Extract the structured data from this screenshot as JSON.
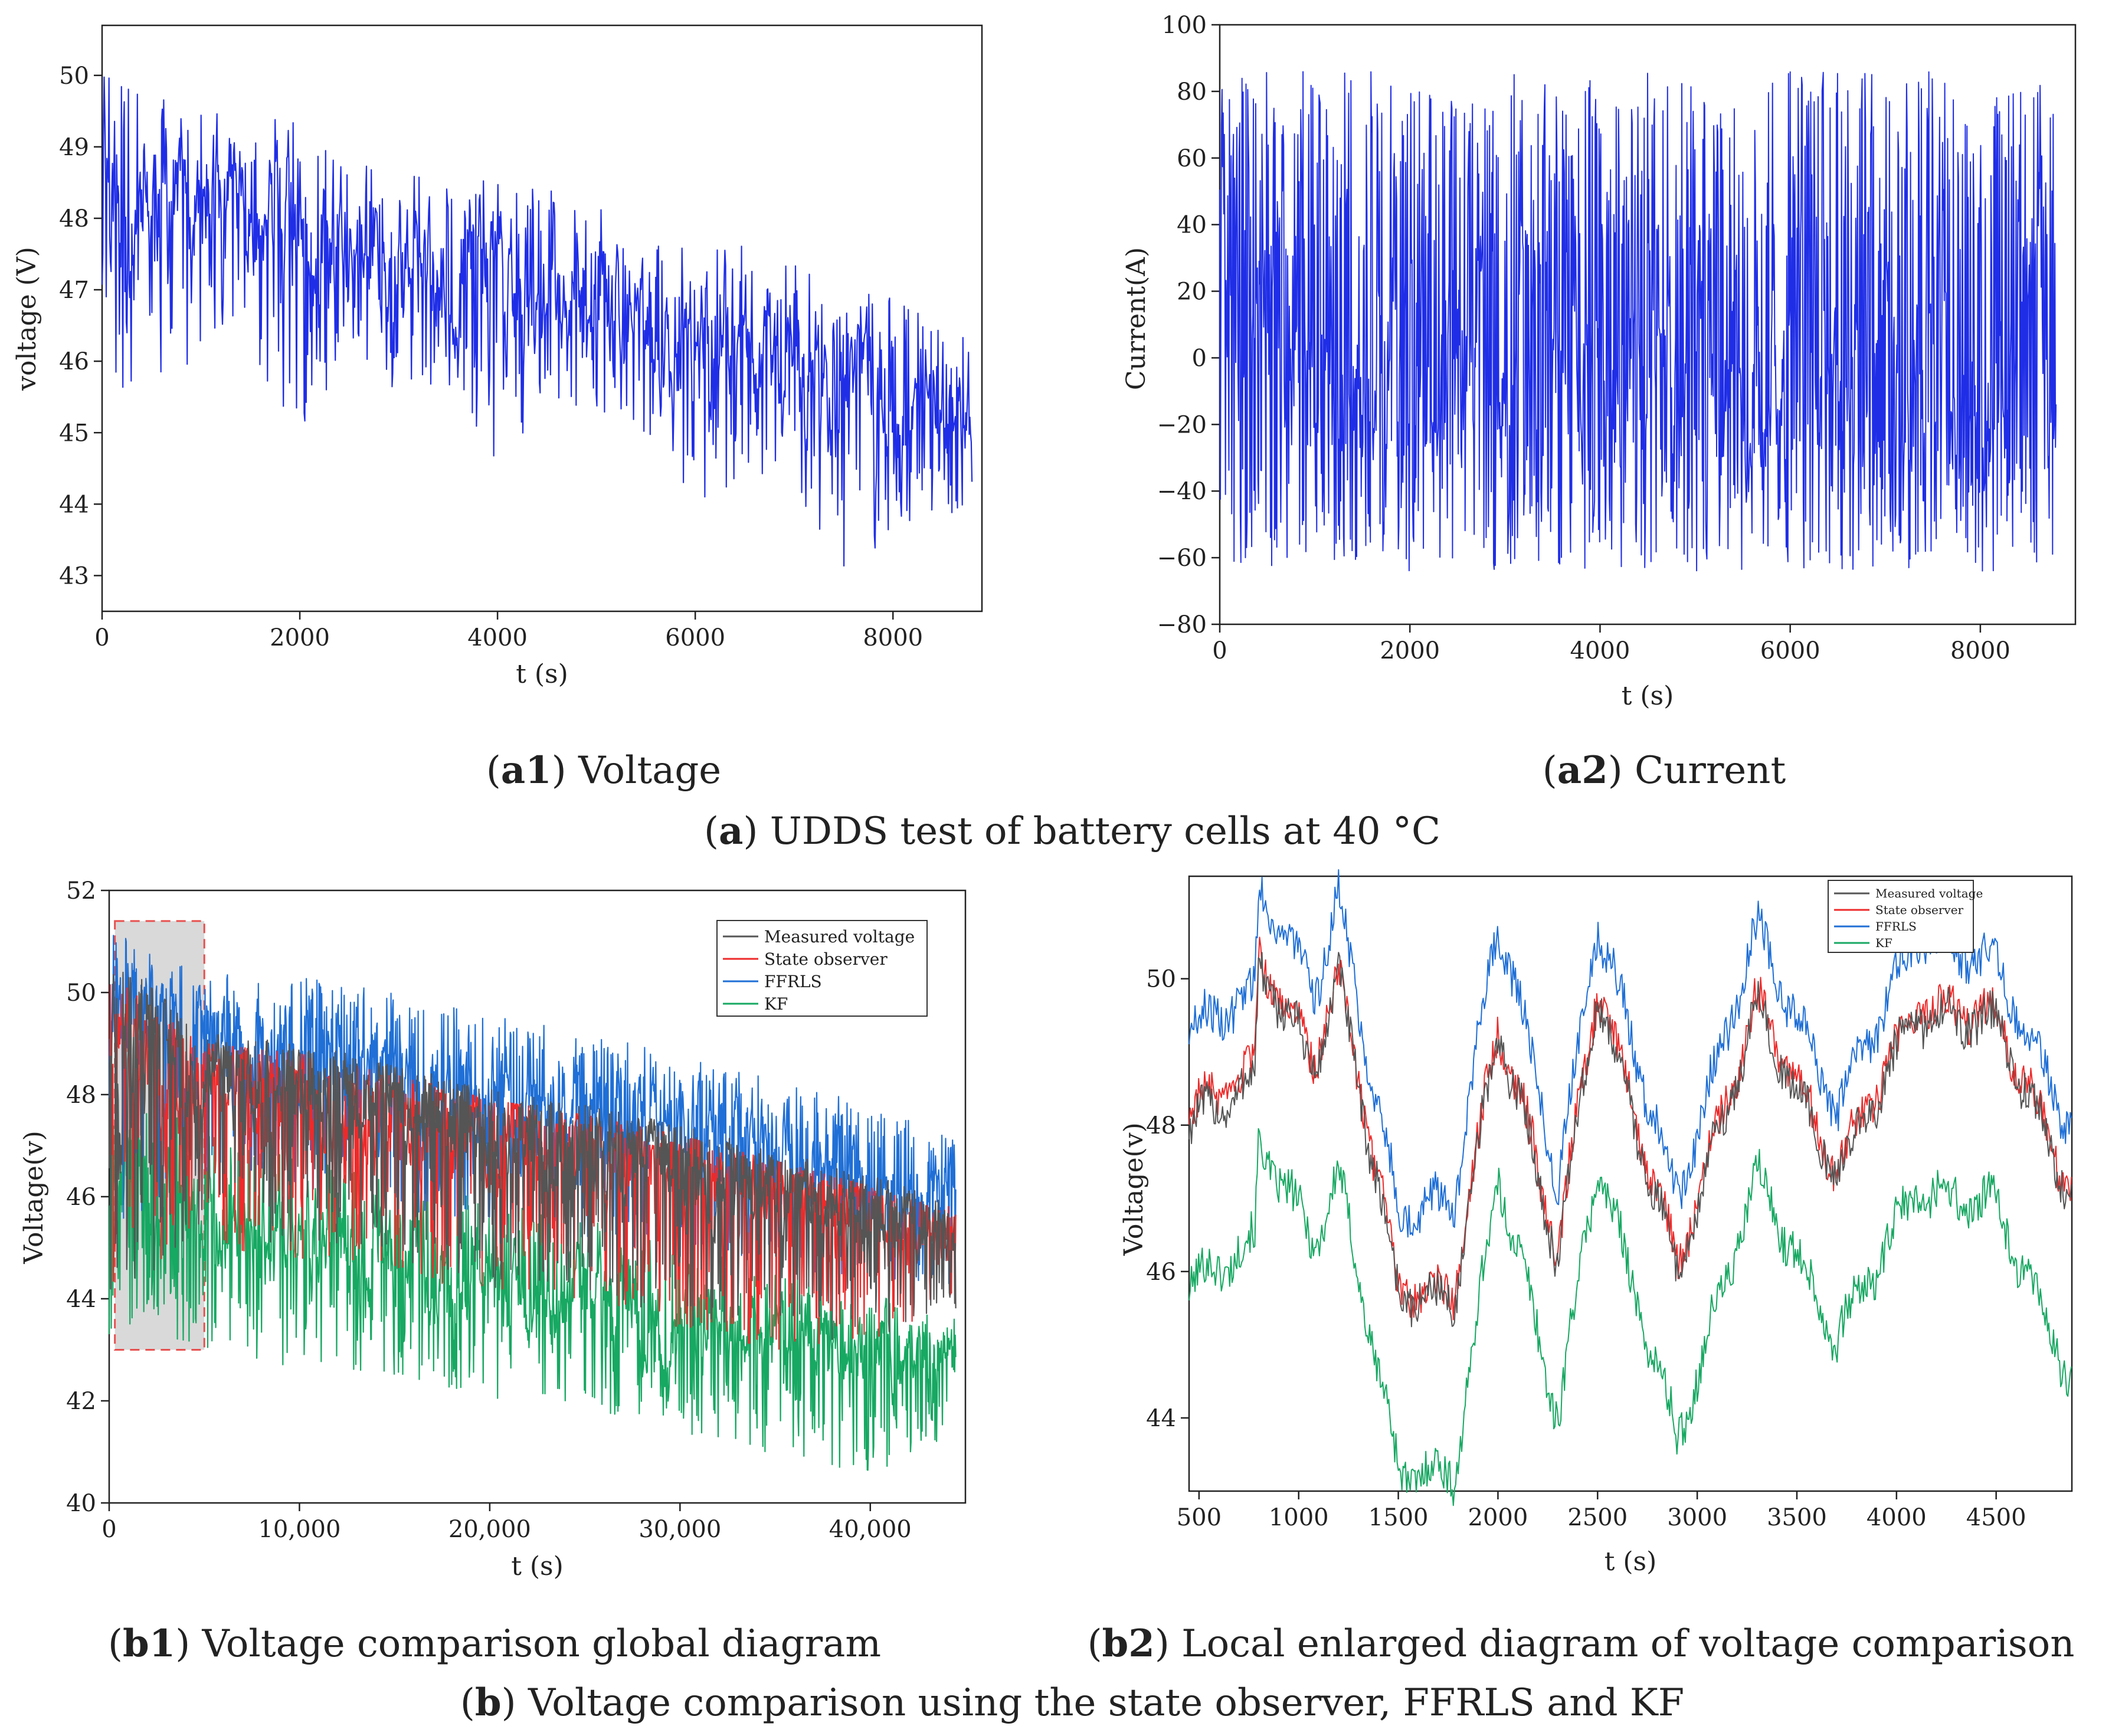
{
  "colors": {
    "blue": "#1f2ee6",
    "measured": "#555555",
    "observer": "#ee2a2a",
    "ffrls": "#1f6fd6",
    "kf": "#17a862",
    "highlight_fill": "#d9d9d9",
    "highlight_stroke": "#e8504f"
  },
  "captions": {
    "a1_bold": "a1",
    "a1_rest": "Voltage",
    "a2_bold": "a2",
    "a2_rest": "Current",
    "a_bold": "a",
    "a_rest": "UDDS test of battery cells at 40 °C",
    "b1_bold": "b1",
    "b1_rest": "Voltage comparison global diagram",
    "b2_bold": "b2",
    "b2_rest": "Local enlarged diagram of voltage comparison",
    "b_bold": "b",
    "b_rest": "Voltage comparison using the state observer, FFRLS and KF"
  },
  "chart_data": [
    {
      "id": "a1",
      "type": "line",
      "title": "Voltage",
      "xlabel": "t (s)",
      "ylabel": "voltage (V)",
      "xlim": [
        0,
        8900
      ],
      "ylim": [
        42.5,
        50.7
      ],
      "xticks": [
        0,
        2000,
        4000,
        6000,
        8000
      ],
      "xtick_labels": [
        "0",
        "2000",
        "4000",
        "6000",
        "8000"
      ],
      "yticks": [
        43,
        44,
        45,
        46,
        47,
        48,
        49,
        50
      ],
      "ytick_labels": [
        "43",
        "44",
        "45",
        "46",
        "47",
        "48",
        "49",
        "50"
      ],
      "series": [
        {
          "name": "voltage",
          "color": "#1f2ee6",
          "x": [
            0,
            500,
            1000,
            1500,
            2000,
            2500,
            3000,
            3500,
            4000,
            4500,
            5000,
            5500,
            6000,
            6500,
            7000,
            7500,
            8000,
            8500,
            8800
          ],
          "baseline": [
            48.6,
            48.3,
            48.2,
            48.2,
            47.6,
            47.4,
            47.3,
            47.4,
            47.1,
            46.9,
            46.8,
            46.3,
            46.1,
            46.0,
            45.8,
            45.4,
            45.2,
            45.1,
            45.1
          ],
          "max": [
            50.3,
            50.0,
            49.5,
            49.4,
            49.4,
            48.9,
            48.7,
            48.6,
            48.5,
            48.4,
            48.2,
            48.1,
            47.9,
            47.6,
            47.4,
            47.1,
            46.9,
            46.5,
            46.4
          ],
          "min": [
            45.5,
            45.8,
            46.0,
            46.0,
            45.0,
            45.8,
            45.6,
            45.6,
            44.5,
            45.3,
            45.2,
            45.0,
            43.7,
            44.5,
            44.2,
            42.9,
            43.6,
            43.8,
            44.0
          ]
        }
      ]
    },
    {
      "id": "a2",
      "type": "line",
      "title": "Current",
      "xlabel": "t (s)",
      "ylabel": "Current(A)",
      "xlim": [
        0,
        9000
      ],
      "ylim": [
        -80,
        100
      ],
      "xticks": [
        0,
        2000,
        4000,
        6000,
        8000
      ],
      "xtick_labels": [
        "0",
        "2000",
        "4000",
        "6000",
        "8000"
      ],
      "yticks": [
        -80,
        -60,
        -40,
        -20,
        0,
        20,
        40,
        60,
        80,
        100
      ],
      "ytick_labels": [
        "−80",
        "−60",
        "−40",
        "−20",
        "0",
        "20",
        "40",
        "60",
        "80",
        "100"
      ],
      "series": [
        {
          "name": "current",
          "color": "#1f2ee6",
          "x": [
            0,
            8800
          ],
          "baseline": [
            0,
            0
          ],
          "max": [
            86,
            86
          ],
          "min": [
            -64,
            -64
          ]
        }
      ]
    },
    {
      "id": "b1",
      "type": "line",
      "title": "Voltage comparison global diagram",
      "xlabel": "t (s)",
      "ylabel": "Voltage(v)",
      "xlim": [
        0,
        45000
      ],
      "ylim": [
        40,
        52
      ],
      "xticks": [
        0,
        10000,
        20000,
        30000,
        40000
      ],
      "xtick_labels": [
        "0",
        "10,000",
        "20,000",
        "30,000",
        "40,000"
      ],
      "yticks": [
        40,
        42,
        44,
        46,
        48,
        50,
        52
      ],
      "ytick_labels": [
        "40",
        "42",
        "44",
        "46",
        "48",
        "50",
        "52"
      ],
      "highlight": {
        "x": [
          300,
          5000
        ],
        "y": [
          43,
          51.4
        ]
      },
      "legend": [
        "Measured voltage",
        "State observer",
        "FFRLS",
        "KF"
      ],
      "series": [
        {
          "name": "Measured voltage",
          "color": "#555555",
          "x": [
            0,
            5000,
            10000,
            15000,
            20000,
            25000,
            30000,
            35000,
            40000,
            44500
          ],
          "baseline": [
            49.0,
            48.3,
            48.1,
            47.8,
            47.3,
            47.0,
            46.6,
            46.1,
            45.6,
            45.2
          ],
          "max": [
            50.8,
            49.2,
            49.0,
            48.6,
            48.1,
            47.8,
            47.4,
            46.9,
            46.4,
            46.0
          ],
          "min": [
            44.0,
            45.2,
            45.0,
            44.8,
            44.2,
            44.2,
            43.5,
            43.2,
            43.2,
            43.8
          ]
        },
        {
          "name": "State observer",
          "color": "#ee2a2a",
          "x": [
            0,
            5000,
            10000,
            15000,
            20000,
            25000,
            30000,
            35000,
            40000,
            44500
          ],
          "baseline": [
            48.8,
            48.2,
            48.0,
            47.7,
            47.2,
            46.9,
            46.5,
            46.0,
            45.6,
            45.2
          ],
          "max": [
            50.4,
            49.0,
            48.8,
            48.4,
            47.9,
            47.6,
            47.2,
            46.7,
            46.2,
            45.8
          ],
          "min": [
            44.2,
            45.0,
            44.8,
            44.6,
            44.0,
            44.0,
            43.4,
            43.0,
            43.2,
            43.8
          ]
        },
        {
          "name": "FFRLS",
          "color": "#1f6fd6",
          "x": [
            0,
            5000,
            10000,
            15000,
            20000,
            25000,
            30000,
            35000,
            40000,
            44500
          ],
          "baseline": [
            49.6,
            49.1,
            48.8,
            48.4,
            48.1,
            47.7,
            47.3,
            46.9,
            46.4,
            46.1
          ],
          "max": [
            51.2,
            50.5,
            50.3,
            50.0,
            49.6,
            49.2,
            48.8,
            48.3,
            47.8,
            47.2
          ],
          "min": [
            45.0,
            46.5,
            46.2,
            45.8,
            45.4,
            45.2,
            44.8,
            44.5,
            44.3,
            44.2
          ]
        },
        {
          "name": "KF",
          "color": "#17a862",
          "x": [
            0,
            5000,
            10000,
            15000,
            20000,
            25000,
            30000,
            35000,
            40000,
            44500
          ],
          "baseline": [
            46.3,
            45.6,
            45.2,
            44.8,
            44.3,
            44.0,
            43.5,
            43.2,
            42.9,
            42.7
          ],
          "max": [
            48.4,
            47.2,
            46.8,
            46.4,
            45.9,
            45.6,
            45.1,
            44.6,
            44.1,
            43.6
          ],
          "min": [
            43.3,
            43.0,
            42.6,
            42.4,
            42.0,
            41.8,
            41.4,
            40.8,
            40.6,
            41.2
          ]
        }
      ]
    },
    {
      "id": "b2",
      "type": "line",
      "title": "Local enlarged diagram of voltage comparison",
      "xlabel": "t (s)",
      "ylabel": "Voltage(v)",
      "xlim": [
        450,
        4880
      ],
      "ylim": [
        43.0,
        51.4
      ],
      "xticks": [
        500,
        1000,
        1500,
        2000,
        2500,
        3000,
        3500,
        4000,
        4500
      ],
      "xtick_labels": [
        "500",
        "1000",
        "1500",
        "2000",
        "2500",
        "3000",
        "3500",
        "4000",
        "4500"
      ],
      "yticks": [
        44,
        46,
        48,
        50
      ],
      "ytick_labels": [
        "44",
        "46",
        "48",
        "50"
      ],
      "legend": [
        "Measured voltage",
        "State observer",
        "FFRLS",
        "KF"
      ],
      "series": [
        {
          "name": "Measured voltage",
          "color": "#555555",
          "x": [
            450,
            780,
            800,
            1080,
            1200,
            1500,
            1780,
            2000,
            2100,
            2300,
            2500,
            2900,
            3300,
            3700,
            4100,
            4500,
            4880
          ],
          "y": [
            48.0,
            48.6,
            50.2,
            48.8,
            50.0,
            45.7,
            45.6,
            49.3,
            48.4,
            46.2,
            49.8,
            46.0,
            49.6,
            47.3,
            49.5,
            49.4,
            47.0
          ]
        },
        {
          "name": "State observer",
          "color": "#ee2a2a",
          "x": [
            450,
            780,
            800,
            1080,
            1200,
            1500,
            1780,
            2000,
            2100,
            2300,
            2500,
            2900,
            3300,
            3700,
            4100,
            4500,
            4880
          ],
          "y": [
            48.2,
            48.7,
            50.3,
            48.9,
            50.1,
            45.8,
            45.7,
            49.4,
            48.5,
            46.3,
            49.9,
            46.1,
            49.7,
            47.4,
            49.6,
            49.5,
            47.1
          ]
        },
        {
          "name": "FFRLS",
          "color": "#1f6fd6",
          "x": [
            450,
            780,
            800,
            1080,
            1200,
            1500,
            1780,
            2000,
            2100,
            2300,
            2500,
            2900,
            3300,
            3700,
            4100,
            4500,
            4880
          ],
          "y": [
            49.3,
            49.8,
            51.3,
            49.8,
            51.1,
            46.8,
            47.0,
            50.8,
            49.8,
            47.2,
            50.8,
            47.0,
            50.7,
            48.2,
            50.6,
            50.2,
            47.9
          ]
        },
        {
          "name": "KF",
          "color": "#17a862",
          "x": [
            450,
            780,
            800,
            1080,
            1200,
            1500,
            1780,
            2000,
            2100,
            2300,
            2500,
            2900,
            3300,
            3700,
            4100,
            4500,
            4880
          ],
          "y": [
            45.8,
            46.4,
            47.8,
            46.4,
            47.3,
            43.3,
            43.2,
            47.3,
            46.3,
            44.0,
            47.5,
            43.7,
            47.3,
            45.1,
            47.1,
            46.9,
            44.5
          ]
        }
      ]
    }
  ]
}
